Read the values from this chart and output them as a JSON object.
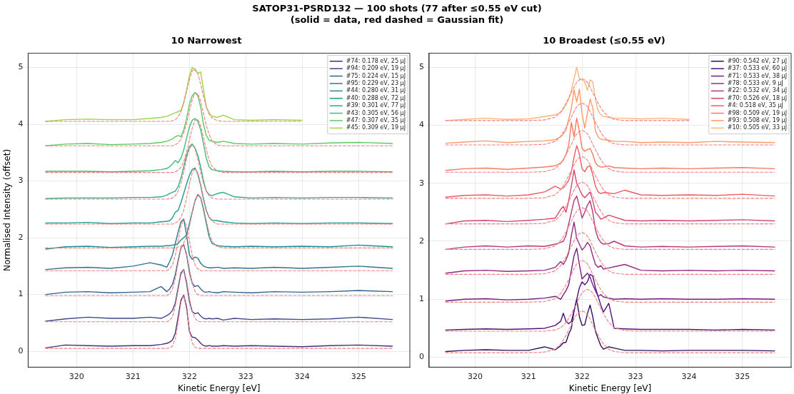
{
  "chart_data": [
    {
      "type": "line",
      "title": "10 Narrowest",
      "xlabel": "Kinetic Energy [eV]",
      "ylabel": "Normalised Intensity (offset)",
      "annotations": [
        "SATOP31-PSRD132 — 100 shots (77 after ≤0.55 eV cut)",
        "(solid = data, red dashed = Gaussian fit)"
      ],
      "x": [
        319.45,
        319.8,
        320.2,
        320.6,
        321.0,
        321.3,
        321.5,
        321.6,
        321.65,
        321.7,
        321.75,
        321.8,
        321.85,
        321.9,
        321.95,
        322.0,
        322.05,
        322.1,
        322.15,
        322.2,
        322.25,
        322.3,
        322.35,
        322.4,
        322.5,
        322.6,
        322.8,
        323.1,
        323.5,
        324.0,
        324.5,
        325.0,
        325.6
      ],
      "xlim": [
        319.14,
        325.91
      ],
      "xticks": [
        320,
        321,
        322,
        323,
        324,
        325
      ],
      "ylim": [
        -0.28,
        5.25
      ],
      "yticks": [
        0,
        1,
        2,
        3,
        4,
        5
      ],
      "grid": true,
      "legend": "top right",
      "marker": "none",
      "series": [
        {
          "name": "#74: 0.178 eV, 25 µJ",
          "color": "#472c7a",
          "values": [
            0.06,
            0.11,
            0.1,
            0.09,
            0.1,
            0.1,
            0.12,
            0.14,
            0.16,
            0.2,
            0.32,
            0.6,
            0.9,
            0.99,
            0.78,
            0.35,
            0.25,
            0.24,
            0.2,
            0.14,
            0.1,
            0.09,
            0.1,
            0.09,
            0.09,
            0.1,
            0.09,
            0.1,
            0.09,
            0.08,
            0.1,
            0.11,
            0.09
          ]
        },
        {
          "color": "#f47c7c",
          "line_style": "dashed",
          "values": [
            0.05,
            0.05,
            0.05,
            0.05,
            0.05,
            0.05,
            0.05,
            0.05,
            0.06,
            0.09,
            0.22,
            0.51,
            0.87,
            0.98,
            0.74,
            0.38,
            0.15,
            0.07,
            0.05,
            0.05,
            0.05,
            0.05,
            0.05,
            0.05,
            0.05,
            0.05,
            0.05,
            0.05,
            0.05,
            0.05,
            0.05,
            0.05,
            0.05
          ]
        },
        {
          "name": "#94: 0.209 eV, 19 µJ",
          "color": "#3f4889",
          "values": [
            0.53,
            0.57,
            0.6,
            0.58,
            0.58,
            0.6,
            0.58,
            0.63,
            0.66,
            0.72,
            0.85,
            1.12,
            1.38,
            1.44,
            1.2,
            0.88,
            0.7,
            0.66,
            0.68,
            0.62,
            0.58,
            0.57,
            0.58,
            0.57,
            0.58,
            0.55,
            0.58,
            0.56,
            0.57,
            0.56,
            0.57,
            0.6,
            0.56
          ]
        },
        {
          "color": "#f47c7c",
          "line_style": "dashed",
          "values": [
            0.52,
            0.52,
            0.52,
            0.52,
            0.52,
            0.52,
            0.52,
            0.52,
            0.54,
            0.61,
            0.79,
            1.07,
            1.35,
            1.43,
            1.25,
            0.94,
            0.7,
            0.58,
            0.53,
            0.52,
            0.52,
            0.52,
            0.52,
            0.52,
            0.52,
            0.52,
            0.52,
            0.52,
            0.52,
            0.52,
            0.52,
            0.52,
            0.52
          ]
        },
        {
          "name": "#75: 0.224 eV, 15 µJ",
          "color": "#33638d",
          "values": [
            1.0,
            1.04,
            1.05,
            1.03,
            1.04,
            1.05,
            1.14,
            1.05,
            1.1,
            1.18,
            1.35,
            1.6,
            1.82,
            1.88,
            1.7,
            1.4,
            1.2,
            1.14,
            1.16,
            1.1,
            1.05,
            1.04,
            1.05,
            1.04,
            1.03,
            1.05,
            1.04,
            1.03,
            1.05,
            1.04,
            1.05,
            1.07,
            1.05
          ]
        },
        {
          "color": "#f47c7c",
          "line_style": "dashed",
          "values": [
            0.98,
            0.98,
            0.98,
            0.98,
            0.98,
            0.98,
            0.98,
            0.98,
            1.01,
            1.1,
            1.28,
            1.56,
            1.81,
            1.88,
            1.72,
            1.44,
            1.2,
            1.05,
            1.0,
            0.98,
            0.98,
            0.98,
            0.98,
            0.98,
            0.98,
            0.98,
            0.98,
            0.98,
            0.98,
            0.98,
            0.98,
            0.98,
            0.98
          ]
        },
        {
          "name": "#95: 0.229 eV, 23 µJ",
          "color": "#2a778e",
          "values": [
            1.44,
            1.47,
            1.48,
            1.46,
            1.5,
            1.56,
            1.52,
            1.48,
            1.58,
            1.7,
            1.9,
            2.1,
            2.28,
            2.33,
            2.05,
            1.7,
            1.62,
            1.66,
            1.64,
            1.55,
            1.5,
            1.48,
            1.47,
            1.47,
            1.48,
            1.46,
            1.47,
            1.46,
            1.48,
            1.46,
            1.48,
            1.5,
            1.46
          ]
        },
        {
          "color": "#f47c7c",
          "line_style": "dashed",
          "values": [
            1.42,
            1.42,
            1.42,
            1.42,
            1.42,
            1.42,
            1.42,
            1.42,
            1.45,
            1.52,
            1.69,
            1.95,
            2.21,
            2.33,
            2.21,
            1.95,
            1.69,
            1.52,
            1.45,
            1.42,
            1.42,
            1.42,
            1.42,
            1.42,
            1.42,
            1.42,
            1.42,
            1.42,
            1.42,
            1.42,
            1.42,
            1.42,
            1.42
          ]
        },
        {
          "name": "#44: 0.280 eV, 31 µJ",
          "color": "#228c8d",
          "values": [
            1.8,
            1.84,
            1.85,
            1.83,
            1.84,
            1.85,
            1.85,
            1.86,
            1.86,
            1.87,
            1.88,
            1.9,
            1.96,
            2.0,
            2.05,
            2.25,
            2.45,
            2.65,
            2.76,
            2.7,
            2.5,
            2.25,
            2.02,
            1.9,
            1.86,
            1.85,
            1.84,
            1.85,
            1.84,
            1.85,
            1.84,
            1.87,
            1.84
          ]
        },
        {
          "color": "#f47c7c",
          "line_style": "dashed",
          "values": [
            1.82,
            1.82,
            1.82,
            1.82,
            1.82,
            1.82,
            1.82,
            1.82,
            1.82,
            1.82,
            1.82,
            1.83,
            1.85,
            1.91,
            2.02,
            2.2,
            2.44,
            2.66,
            2.77,
            2.72,
            2.53,
            2.3,
            2.09,
            1.94,
            1.84,
            1.82,
            1.82,
            1.82,
            1.82,
            1.82,
            1.82,
            1.82,
            1.82
          ]
        },
        {
          "name": "#40: 0.288 eV, 72 µJ",
          "color": "#1f9a8a",
          "values": [
            2.26,
            2.26,
            2.27,
            2.25,
            2.26,
            2.26,
            2.28,
            2.29,
            2.3,
            2.35,
            2.45,
            2.48,
            2.62,
            2.78,
            2.95,
            3.1,
            3.2,
            3.23,
            3.12,
            2.92,
            2.68,
            2.48,
            2.36,
            2.31,
            2.3,
            2.28,
            2.26,
            2.25,
            2.26,
            2.25,
            2.26,
            2.26,
            2.25
          ]
        },
        {
          "color": "#f47c7c",
          "line_style": "dashed",
          "values": [
            2.24,
            2.24,
            2.24,
            2.24,
            2.24,
            2.24,
            2.24,
            2.24,
            2.24,
            2.24,
            2.26,
            2.29,
            2.36,
            2.49,
            2.7,
            2.94,
            3.14,
            3.22,
            3.14,
            2.94,
            2.7,
            2.49,
            2.36,
            2.29,
            2.24,
            2.24,
            2.24,
            2.24,
            2.24,
            2.24,
            2.24,
            2.24,
            2.24
          ]
        },
        {
          "name": "#39: 0.301 eV, 77 µJ",
          "color": "#27ad81",
          "values": [
            2.69,
            2.7,
            2.7,
            2.7,
            2.71,
            2.71,
            2.72,
            2.75,
            2.78,
            2.8,
            2.82,
            2.9,
            3.05,
            3.25,
            3.45,
            3.6,
            3.65,
            3.58,
            3.45,
            3.25,
            3.0,
            2.82,
            2.76,
            2.74,
            2.78,
            2.8,
            2.72,
            2.7,
            2.71,
            2.7,
            2.71,
            2.71,
            2.7
          ]
        },
        {
          "color": "#f47c7c",
          "line_style": "dashed",
          "values": [
            2.68,
            2.68,
            2.68,
            2.68,
            2.68,
            2.68,
            2.68,
            2.68,
            2.69,
            2.7,
            2.74,
            2.82,
            2.96,
            3.16,
            3.39,
            3.57,
            3.64,
            3.57,
            3.39,
            3.16,
            2.96,
            2.82,
            2.74,
            2.7,
            2.68,
            2.68,
            2.68,
            2.68,
            2.68,
            2.68,
            2.68,
            2.68,
            2.68
          ]
        },
        {
          "name": "#43: 0.305 eV, 56 µJ",
          "color": "#3fbc73",
          "values": [
            3.17,
            3.17,
            3.17,
            3.16,
            3.17,
            3.18,
            3.2,
            3.22,
            3.25,
            3.3,
            3.36,
            3.32,
            3.4,
            3.55,
            3.75,
            3.95,
            4.07,
            4.1,
            4.05,
            3.9,
            3.65,
            3.4,
            3.25,
            3.2,
            3.18,
            3.17,
            3.16,
            3.16,
            3.17,
            3.16,
            3.17,
            3.17,
            3.16
          ]
        },
        {
          "color": "#f47c7c",
          "line_style": "dashed",
          "values": [
            3.15,
            3.15,
            3.15,
            3.15,
            3.15,
            3.15,
            3.15,
            3.15,
            3.15,
            3.15,
            3.16,
            3.19,
            3.24,
            3.34,
            3.51,
            3.72,
            3.93,
            4.07,
            4.09,
            3.97,
            3.77,
            3.55,
            3.37,
            3.26,
            3.17,
            3.15,
            3.15,
            3.15,
            3.15,
            3.15,
            3.15,
            3.15,
            3.15
          ]
        },
        {
          "name": "#47: 0.307 eV, 35 µJ",
          "color": "#5ec962",
          "values": [
            3.62,
            3.65,
            3.66,
            3.64,
            3.65,
            3.66,
            3.68,
            3.7,
            3.72,
            3.74,
            3.78,
            3.8,
            3.78,
            3.9,
            4.1,
            4.35,
            4.5,
            4.56,
            4.5,
            4.3,
            4.0,
            3.8,
            3.72,
            3.7,
            3.68,
            3.7,
            3.66,
            3.65,
            3.66,
            3.65,
            3.67,
            3.68,
            3.66
          ]
        },
        {
          "color": "#f47c7c",
          "line_style": "dashed",
          "values": [
            3.62,
            3.62,
            3.62,
            3.62,
            3.62,
            3.62,
            3.62,
            3.62,
            3.62,
            3.62,
            3.64,
            3.67,
            3.73,
            3.85,
            4.01,
            4.23,
            4.43,
            4.55,
            4.54,
            4.4,
            4.19,
            3.98,
            3.82,
            3.71,
            3.63,
            3.62,
            3.62,
            3.62,
            3.62,
            3.62,
            3.62,
            3.62,
            3.62
          ]
        },
        {
          "name": "#45: 0.309 eV, 19 µJ",
          "color": "#9ad63f",
          "values": [
            4.05,
            4.08,
            4.09,
            4.08,
            4.08,
            4.1,
            4.12,
            4.14,
            4.16,
            4.18,
            4.2,
            4.22,
            4.24,
            4.38,
            4.6,
            4.85,
            5.0,
            4.95,
            4.9,
            4.92,
            4.6,
            4.3,
            4.2,
            4.14,
            4.12,
            4.16,
            4.08,
            4.07,
            4.08,
            4.07,
            null,
            null,
            null
          ]
        },
        {
          "color": "#f47c7c",
          "line_style": "dashed",
          "values": [
            4.05,
            4.05,
            4.05,
            4.05,
            4.05,
            4.05,
            4.05,
            4.05,
            4.05,
            4.06,
            4.08,
            4.13,
            4.22,
            4.38,
            4.58,
            4.78,
            4.94,
            4.98,
            4.89,
            4.7,
            4.49,
            4.31,
            4.18,
            4.11,
            4.06,
            4.05,
            4.05,
            4.05,
            4.05,
            4.05,
            null,
            null,
            null
          ]
        }
      ]
    },
    {
      "type": "line",
      "title": "10 Broadest (≤0.55 eV)",
      "xlabel": "Kinetic Energy [eV]",
      "x": [
        319.45,
        319.8,
        320.2,
        320.6,
        321.0,
        321.3,
        321.5,
        321.6,
        321.65,
        321.7,
        321.75,
        321.8,
        321.85,
        321.9,
        321.95,
        322.0,
        322.05,
        322.1,
        322.15,
        322.2,
        322.25,
        322.3,
        322.35,
        322.4,
        322.5,
        322.6,
        322.8,
        323.1,
        323.5,
        324.0,
        324.5,
        325.0,
        325.6
      ],
      "xlim": [
        319.14,
        325.91
      ],
      "xticks": [
        320,
        321,
        322,
        323,
        324,
        325
      ],
      "ylim": [
        -0.17,
        5.24
      ],
      "yticks": [
        0,
        1,
        2,
        3,
        4,
        5
      ],
      "grid": true,
      "legend": "top right",
      "marker": "none",
      "series": [
        {
          "name": "#90: 0.542 eV, 27 µJ",
          "color": "#2c115f",
          "values": [
            0.1,
            0.12,
            0.13,
            0.12,
            0.12,
            0.18,
            0.13,
            0.2,
            0.25,
            0.26,
            0.4,
            0.5,
            0.8,
            1.0,
            0.7,
            0.55,
            0.56,
            0.75,
            0.9,
            0.7,
            0.45,
            0.32,
            0.2,
            0.14,
            0.18,
            0.16,
            0.12,
            0.12,
            0.11,
            0.12,
            0.12,
            0.12,
            0.11
          ]
        },
        {
          "color": "#f47c7c",
          "line_style": "dashed",
          "values": [
            0.08,
            0.08,
            0.08,
            0.08,
            0.08,
            0.09,
            0.14,
            0.23,
            0.3,
            0.38,
            0.47,
            0.56,
            0.66,
            0.74,
            0.78,
            0.8,
            0.78,
            0.74,
            0.66,
            0.56,
            0.47,
            0.38,
            0.3,
            0.23,
            0.14,
            0.1,
            0.08,
            0.08,
            0.08,
            0.08,
            0.08,
            0.08,
            0.08
          ]
        },
        {
          "name": "#37: 0.533 eV, 60 µJ",
          "color": "#51127c",
          "values": [
            0.47,
            0.48,
            0.49,
            0.48,
            0.49,
            0.5,
            0.55,
            0.62,
            0.76,
            0.62,
            0.58,
            0.62,
            0.8,
            1.0,
            1.2,
            1.3,
            1.25,
            1.3,
            1.43,
            1.4,
            1.2,
            1.05,
            0.9,
            0.78,
            0.93,
            0.5,
            0.49,
            0.48,
            0.48,
            0.48,
            0.47,
            0.48,
            0.47
          ]
        },
        {
          "color": "#f47c7c",
          "line_style": "dashed",
          "values": [
            0.45,
            0.45,
            0.45,
            0.45,
            0.45,
            0.45,
            0.47,
            0.51,
            0.55,
            0.6,
            0.67,
            0.75,
            0.84,
            0.93,
            1.03,
            1.11,
            1.15,
            1.17,
            1.15,
            1.11,
            1.03,
            0.93,
            0.84,
            0.75,
            0.6,
            0.51,
            0.46,
            0.45,
            0.45,
            0.45,
            0.45,
            0.45,
            0.45
          ]
        },
        {
          "name": "#71: 0.533 eV, 38 µJ",
          "color": "#721f81",
          "values": [
            0.97,
            1.0,
            1.01,
            0.99,
            1.0,
            1.02,
            1.05,
            1.0,
            1.08,
            1.15,
            1.25,
            1.5,
            1.75,
            1.88,
            1.6,
            1.35,
            1.4,
            1.45,
            1.38,
            1.25,
            1.15,
            1.05,
            1.08,
            1.04,
            1.02,
            1.0,
            1.01,
            1.0,
            1.01,
            1.0,
            1.0,
            1.01,
            1.0
          ]
        },
        {
          "color": "#f47c7c",
          "line_style": "dashed",
          "values": [
            0.95,
            0.95,
            0.95,
            0.95,
            0.95,
            0.96,
            1.01,
            1.1,
            1.17,
            1.25,
            1.34,
            1.43,
            1.53,
            1.61,
            1.65,
            1.67,
            1.65,
            1.61,
            1.53,
            1.43,
            1.34,
            1.25,
            1.17,
            1.1,
            1.01,
            0.97,
            0.95,
            0.95,
            0.95,
            0.95,
            0.95,
            0.95,
            0.95
          ]
        },
        {
          "name": "#78: 0.533 eV, 9 µJ",
          "color": "#932b80",
          "values": [
            1.45,
            1.49,
            1.5,
            1.48,
            1.49,
            1.5,
            1.55,
            1.65,
            1.6,
            1.68,
            1.8,
            2.1,
            2.33,
            2.05,
            1.95,
            1.85,
            1.9,
            1.98,
            1.92,
            1.75,
            1.6,
            1.55,
            1.58,
            1.52,
            1.54,
            1.56,
            1.6,
            1.5,
            1.49,
            1.5,
            1.49,
            1.5,
            1.49
          ]
        },
        {
          "color": "#f47c7c",
          "line_style": "dashed",
          "values": [
            1.43,
            1.43,
            1.43,
            1.43,
            1.43,
            1.44,
            1.49,
            1.58,
            1.65,
            1.73,
            1.82,
            1.91,
            2.01,
            2.09,
            2.13,
            2.15,
            2.13,
            2.09,
            2.01,
            1.91,
            1.82,
            1.73,
            1.65,
            1.58,
            1.49,
            1.45,
            1.43,
            1.43,
            1.43,
            1.43,
            1.43,
            1.43,
            1.43
          ]
        },
        {
          "name": "#22: 0.532 eV, 34 µJ",
          "color": "#b73779",
          "values": [
            1.86,
            1.9,
            1.92,
            1.9,
            1.92,
            1.91,
            1.95,
            1.98,
            2.0,
            2.1,
            2.3,
            2.5,
            2.7,
            2.78,
            2.6,
            2.4,
            2.5,
            2.62,
            2.7,
            2.5,
            2.2,
            2.05,
            1.98,
            1.95,
            1.96,
            2.0,
            1.92,
            1.9,
            1.91,
            1.9,
            1.91,
            1.92,
            1.9
          ]
        },
        {
          "color": "#f47c7c",
          "line_style": "dashed",
          "values": [
            1.86,
            1.86,
            1.86,
            1.86,
            1.86,
            1.87,
            1.92,
            2.01,
            2.08,
            2.16,
            2.25,
            2.34,
            2.44,
            2.52,
            2.56,
            2.58,
            2.56,
            2.52,
            2.44,
            2.34,
            2.25,
            2.16,
            2.08,
            2.01,
            1.92,
            1.88,
            1.86,
            1.86,
            1.86,
            1.86,
            1.86,
            1.86,
            1.86
          ]
        },
        {
          "name": "#70: 0.526 eV, 18 µJ",
          "color": "#d6456c",
          "values": [
            2.3,
            2.35,
            2.36,
            2.34,
            2.36,
            2.38,
            2.4,
            2.55,
            2.6,
            2.5,
            2.7,
            2.95,
            3.23,
            3.0,
            2.9,
            2.8,
            2.75,
            2.8,
            2.85,
            2.7,
            2.5,
            2.45,
            2.38,
            2.4,
            2.45,
            2.42,
            2.36,
            2.35,
            2.36,
            2.35,
            2.36,
            2.37,
            2.35
          ]
        },
        {
          "color": "#f47c7c",
          "line_style": "dashed",
          "values": [
            2.3,
            2.3,
            2.3,
            2.3,
            2.3,
            2.31,
            2.36,
            2.45,
            2.52,
            2.6,
            2.69,
            2.78,
            2.88,
            2.96,
            3.0,
            3.02,
            3.0,
            2.96,
            2.88,
            2.78,
            2.69,
            2.6,
            2.52,
            2.45,
            2.36,
            2.32,
            2.3,
            2.3,
            2.3,
            2.3,
            2.3,
            2.3,
            2.3
          ]
        },
        {
          "name": "#4: 0.518 eV, 35 µJ",
          "color": "#ee5a60",
          "values": [
            2.76,
            2.79,
            2.8,
            2.78,
            2.8,
            2.85,
            2.95,
            2.9,
            2.92,
            2.98,
            3.05,
            3.2,
            3.45,
            3.65,
            3.5,
            3.25,
            3.2,
            3.28,
            3.3,
            3.15,
            2.95,
            2.85,
            2.82,
            2.84,
            2.83,
            2.82,
            2.88,
            2.8,
            2.79,
            2.8,
            2.79,
            2.81,
            2.78
          ]
        },
        {
          "color": "#f47c7c",
          "line_style": "dashed",
          "values": [
            2.74,
            2.74,
            2.74,
            2.74,
            2.74,
            2.75,
            2.8,
            2.89,
            2.96,
            3.04,
            3.13,
            3.22,
            3.32,
            3.4,
            3.44,
            3.46,
            3.44,
            3.4,
            3.32,
            3.22,
            3.13,
            3.04,
            2.96,
            2.89,
            2.8,
            2.76,
            2.74,
            2.74,
            2.74,
            2.74,
            2.74,
            2.74,
            2.74
          ]
        },
        {
          "name": "#98: 0.509 eV, 19 µJ",
          "color": "#fa7a5f",
          "values": [
            3.22,
            3.25,
            3.26,
            3.24,
            3.26,
            3.28,
            3.3,
            3.35,
            3.4,
            3.5,
            3.65,
            4.05,
            3.8,
            4.12,
            3.9,
            3.6,
            3.55,
            3.58,
            3.6,
            3.5,
            3.35,
            3.3,
            3.28,
            3.28,
            3.3,
            3.27,
            3.26,
            3.25,
            3.26,
            3.25,
            3.26,
            3.27,
            3.25
          ]
        },
        {
          "color": "#f47c7c",
          "line_style": "dashed",
          "values": [
            3.19,
            3.19,
            3.19,
            3.19,
            3.19,
            3.2,
            3.25,
            3.34,
            3.41,
            3.49,
            3.58,
            3.67,
            3.77,
            3.85,
            3.89,
            3.91,
            3.89,
            3.85,
            3.77,
            3.67,
            3.58,
            3.49,
            3.41,
            3.34,
            3.25,
            3.21,
            3.19,
            3.19,
            3.19,
            3.19,
            3.19,
            3.19,
            3.19
          ]
        },
        {
          "name": "#93: 0.508 eV, 19 µJ",
          "color": "#fd9a6a",
          "values": [
            3.69,
            3.71,
            3.73,
            3.7,
            3.72,
            3.73,
            3.75,
            3.8,
            3.85,
            3.92,
            4.1,
            4.3,
            4.61,
            4.4,
            4.62,
            4.2,
            3.95,
            4.2,
            4.45,
            4.3,
            3.9,
            3.8,
            3.76,
            3.75,
            3.74,
            3.72,
            3.72,
            3.7,
            3.71,
            3.7,
            3.72,
            3.71,
            3.7
          ]
        },
        {
          "color": "#f47c7c",
          "line_style": "dashed",
          "values": [
            3.66,
            3.66,
            3.66,
            3.66,
            3.66,
            3.67,
            3.72,
            3.81,
            3.88,
            3.96,
            4.05,
            4.14,
            4.24,
            4.32,
            4.36,
            4.38,
            4.36,
            4.32,
            4.24,
            4.14,
            4.05,
            3.96,
            3.88,
            3.81,
            3.72,
            3.68,
            3.66,
            3.66,
            3.66,
            3.66,
            3.66,
            3.66,
            3.66
          ]
        },
        {
          "name": "#10: 0.505 eV, 33 µJ",
          "color": "#feb57c",
          "values": [
            4.08,
            4.1,
            4.12,
            4.1,
            4.11,
            4.15,
            4.18,
            4.22,
            4.28,
            4.35,
            4.45,
            4.6,
            4.8,
            5.0,
            4.8,
            4.78,
            4.75,
            4.6,
            4.78,
            4.75,
            4.45,
            4.25,
            4.18,
            4.15,
            4.14,
            4.12,
            4.12,
            4.11,
            4.12,
            4.1,
            null,
            null,
            null
          ]
        },
        {
          "color": "#f47c7c",
          "line_style": "dashed",
          "values": [
            4.08,
            4.08,
            4.08,
            4.08,
            4.08,
            4.09,
            4.14,
            4.23,
            4.3,
            4.38,
            4.47,
            4.56,
            4.66,
            4.74,
            4.78,
            4.8,
            4.78,
            4.74,
            4.66,
            4.56,
            4.47,
            4.38,
            4.3,
            4.23,
            4.14,
            4.1,
            4.08,
            4.08,
            4.08,
            4.08,
            null,
            null,
            null
          ]
        }
      ]
    }
  ]
}
